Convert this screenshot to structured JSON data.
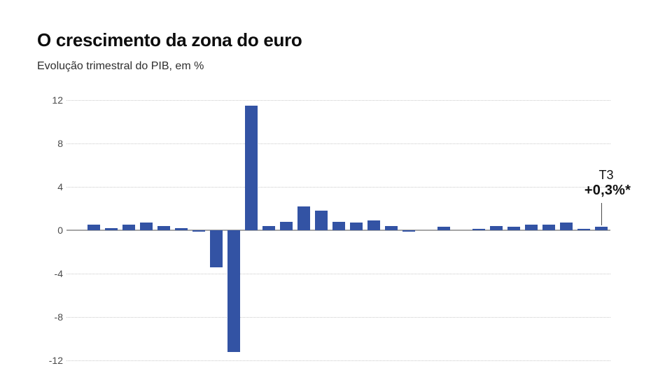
{
  "chart_data": {
    "type": "bar",
    "title": "O crescimento da zona do euro",
    "subtitle": "Evolução trimestral do PIB, em %",
    "unit": "%",
    "n_bars": 30,
    "x_tick_labels": [],
    "y_ticks": [
      12,
      8,
      4,
      0,
      -4,
      -8,
      -12
    ],
    "ylim": [
      -12,
      12
    ],
    "grid": "horizontal dotted gridlines, solid gray zero axis, no vertical gridlines",
    "legend": "none",
    "values": [
      0.5,
      0.2,
      0.5,
      0.7,
      0.4,
      0.2,
      -0.1,
      -3.4,
      -11.2,
      11.5,
      0.4,
      0.8,
      2.2,
      1.8,
      0.8,
      0.7,
      0.9,
      0.4,
      -0.1,
      0.0,
      0.3,
      0.0,
      0.1,
      0.4,
      0.3,
      0.5,
      0.5,
      0.7,
      0.1,
      0.3
    ],
    "annotation": {
      "quarter": "T3",
      "value": "+0,3%*",
      "bar_index": 29
    }
  },
  "colors": {
    "background": "#ffffff",
    "bar": "#3353a4",
    "gridline": "#c9c9c9",
    "zero_line": "#a6a6a6",
    "axis_label": "#4b4b4b",
    "title": "#0d0d0d",
    "subtitle": "#2e2e2e",
    "annotation": "#111111"
  }
}
